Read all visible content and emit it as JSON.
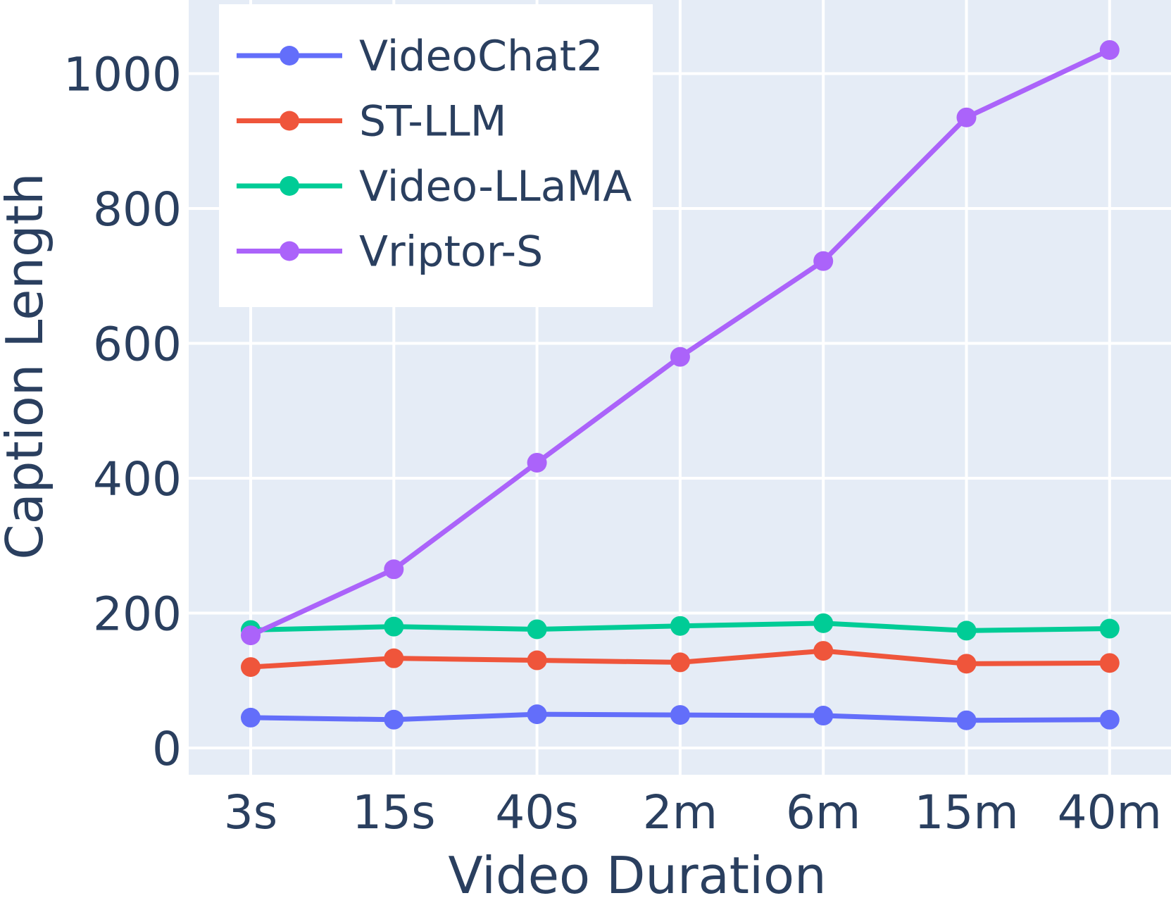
{
  "chart_data": {
    "type": "line",
    "xlabel": "Video Duration",
    "ylabel": "Caption Length",
    "categories": [
      "3s",
      "15s",
      "40s",
      "2m",
      "6m",
      "15m",
      "40m"
    ],
    "yticks": [
      0,
      200,
      400,
      600,
      800,
      1000
    ],
    "ylim": [
      -40,
      1100
    ],
    "grid": true,
    "legend_position": "top-left",
    "colors": {
      "plot_background": "#e5ecf6",
      "grid": "#ffffff",
      "text": "#2a3f5f"
    },
    "series": [
      {
        "name": "VideoChat2",
        "color": "#636efa",
        "values": [
          45,
          42,
          50,
          49,
          48,
          41,
          42
        ]
      },
      {
        "name": "ST-LLM",
        "color": "#ef553b",
        "values": [
          120,
          133,
          130,
          127,
          144,
          125,
          126
        ]
      },
      {
        "name": "Video-LLaMA",
        "color": "#00cc96",
        "values": [
          175,
          180,
          176,
          181,
          185,
          174,
          177
        ]
      },
      {
        "name": "Vriptor-S",
        "color": "#ab63fa",
        "values": [
          167,
          265,
          423,
          580,
          722,
          935,
          1035
        ]
      }
    ]
  }
}
